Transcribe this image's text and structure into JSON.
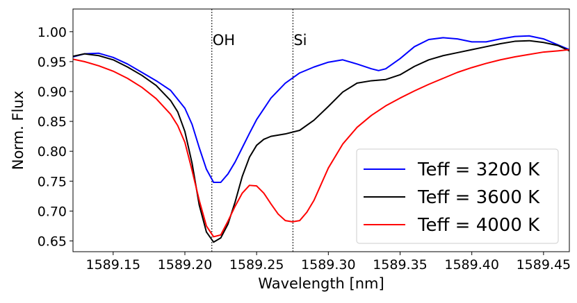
{
  "chart_data": {
    "type": "line",
    "title": "",
    "xlabel": "Wavelength [nm]",
    "ylabel": "Norm. Flux",
    "xlim": [
      1589.122,
      1589.468
    ],
    "ylim": [
      0.632,
      1.038
    ],
    "xticks": [
      1589.15,
      1589.2,
      1589.25,
      1589.3,
      1589.35,
      1589.4,
      1589.45
    ],
    "xtick_labels": [
      "1589.15",
      "1589.20",
      "1589.25",
      "1589.30",
      "1589.35",
      "1589.40",
      "1589.45"
    ],
    "yticks": [
      0.65,
      0.7,
      0.75,
      0.8,
      0.85,
      0.9,
      0.95,
      1.0
    ],
    "ytick_labels": [
      "0.65",
      "0.70",
      "0.75",
      "0.80",
      "0.85",
      "0.90",
      "0.95",
      "1.00"
    ],
    "grid": false,
    "legend_position": "bottom-right",
    "annotations": [
      {
        "label": "OH",
        "x": 1589.2188
      },
      {
        "label": "Si",
        "x": 1589.2753
      }
    ],
    "series": [
      {
        "name": "Teff = 3200 K",
        "color": "#0000ff",
        "x": [
          1589.122,
          1589.13,
          1589.14,
          1589.15,
          1589.16,
          1589.17,
          1589.18,
          1589.19,
          1589.2,
          1589.205,
          1589.21,
          1589.215,
          1589.22,
          1589.225,
          1589.23,
          1589.235,
          1589.24,
          1589.245,
          1589.25,
          1589.26,
          1589.27,
          1589.28,
          1589.29,
          1589.3,
          1589.31,
          1589.32,
          1589.33,
          1589.335,
          1589.34,
          1589.35,
          1589.36,
          1589.37,
          1589.38,
          1589.39,
          1589.4,
          1589.41,
          1589.42,
          1589.43,
          1589.44,
          1589.45,
          1589.46,
          1589.468
        ],
        "y": [
          0.958,
          0.963,
          0.964,
          0.957,
          0.946,
          0.932,
          0.918,
          0.902,
          0.872,
          0.845,
          0.806,
          0.77,
          0.748,
          0.748,
          0.762,
          0.782,
          0.806,
          0.83,
          0.853,
          0.889,
          0.914,
          0.931,
          0.941,
          0.949,
          0.953,
          0.946,
          0.938,
          0.935,
          0.938,
          0.955,
          0.975,
          0.987,
          0.99,
          0.988,
          0.983,
          0.983,
          0.988,
          0.992,
          0.993,
          0.988,
          0.978,
          0.97
        ]
      },
      {
        "name": "Teff = 3600 K",
        "color": "#000000",
        "x": [
          1589.122,
          1589.13,
          1589.14,
          1589.15,
          1589.16,
          1589.17,
          1589.18,
          1589.19,
          1589.195,
          1589.2,
          1589.205,
          1589.21,
          1589.215,
          1589.22,
          1589.225,
          1589.23,
          1589.235,
          1589.24,
          1589.245,
          1589.25,
          1589.255,
          1589.26,
          1589.27,
          1589.28,
          1589.29,
          1589.3,
          1589.31,
          1589.32,
          1589.33,
          1589.34,
          1589.35,
          1589.36,
          1589.37,
          1589.38,
          1589.39,
          1589.4,
          1589.41,
          1589.42,
          1589.43,
          1589.44,
          1589.45,
          1589.46,
          1589.468
        ],
        "y": [
          0.959,
          0.963,
          0.96,
          0.953,
          0.941,
          0.927,
          0.91,
          0.885,
          0.866,
          0.833,
          0.78,
          0.71,
          0.665,
          0.648,
          0.655,
          0.678,
          0.715,
          0.758,
          0.79,
          0.81,
          0.82,
          0.825,
          0.829,
          0.835,
          0.852,
          0.875,
          0.899,
          0.914,
          0.918,
          0.92,
          0.928,
          0.942,
          0.953,
          0.96,
          0.965,
          0.97,
          0.975,
          0.98,
          0.984,
          0.985,
          0.982,
          0.977,
          0.968
        ]
      },
      {
        "name": "Teff = 4000 K",
        "color": "#ff0000",
        "x": [
          1589.122,
          1589.13,
          1589.14,
          1589.15,
          1589.16,
          1589.17,
          1589.18,
          1589.19,
          1589.195,
          1589.2,
          1589.205,
          1589.21,
          1589.215,
          1589.22,
          1589.225,
          1589.23,
          1589.235,
          1589.24,
          1589.245,
          1589.25,
          1589.255,
          1589.26,
          1589.265,
          1589.27,
          1589.275,
          1589.28,
          1589.285,
          1589.29,
          1589.295,
          1589.3,
          1589.31,
          1589.32,
          1589.33,
          1589.34,
          1589.35,
          1589.36,
          1589.37,
          1589.38,
          1589.39,
          1589.4,
          1589.41,
          1589.42,
          1589.43,
          1589.44,
          1589.45,
          1589.46,
          1589.468
        ],
        "y": [
          0.954,
          0.95,
          0.943,
          0.934,
          0.922,
          0.907,
          0.888,
          0.862,
          0.843,
          0.815,
          0.768,
          0.718,
          0.675,
          0.657,
          0.66,
          0.683,
          0.708,
          0.73,
          0.743,
          0.742,
          0.73,
          0.712,
          0.695,
          0.684,
          0.682,
          0.684,
          0.698,
          0.718,
          0.745,
          0.772,
          0.812,
          0.84,
          0.86,
          0.876,
          0.889,
          0.901,
          0.912,
          0.922,
          0.932,
          0.94,
          0.947,
          0.953,
          0.958,
          0.962,
          0.966,
          0.968,
          0.97
        ]
      }
    ]
  }
}
